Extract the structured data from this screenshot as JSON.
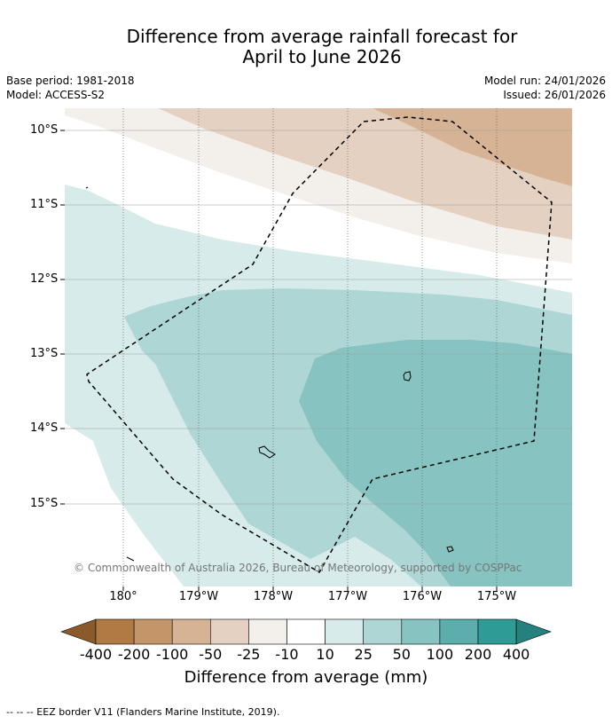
{
  "title_line1": "Difference from average rainfall forecast for",
  "title_line2": "April to June 2026",
  "base_period": "Base period: 1981-2018",
  "model": "Model: ACCESS-S2",
  "model_run": "Model run: 24/01/2026",
  "issued": "Issued: 26/01/2026",
  "copyright": "© Commonwealth of Australia 2026, Bureau of Meteorology, supported by COSPPac",
  "lat_labels": [
    "10°S",
    "11°S",
    "12°S",
    "13°S",
    "14°S",
    "15°S"
  ],
  "lon_labels": [
    "180°",
    "179°W",
    "178°W",
    "177°W",
    "176°W",
    "175°W"
  ],
  "colorbar": {
    "title": "Difference from average (mm)",
    "labels": [
      "-400",
      "-200",
      "-100",
      "-50",
      "-25",
      "-10",
      "10",
      "25",
      "50",
      "100",
      "200",
      "400"
    ],
    "colors": [
      "#8b5a2b",
      "#b07a45",
      "#c5956a",
      "#d6b394",
      "#e4d1c1",
      "#f3efea",
      "#ffffff",
      "#d6ebea",
      "#aed6d5",
      "#86c3c1",
      "#5baeac",
      "#2f9b96",
      "#24817e"
    ]
  },
  "footer": "--  --  -- EEZ border V11 (Flanders Marine Institute, 2019)."
}
